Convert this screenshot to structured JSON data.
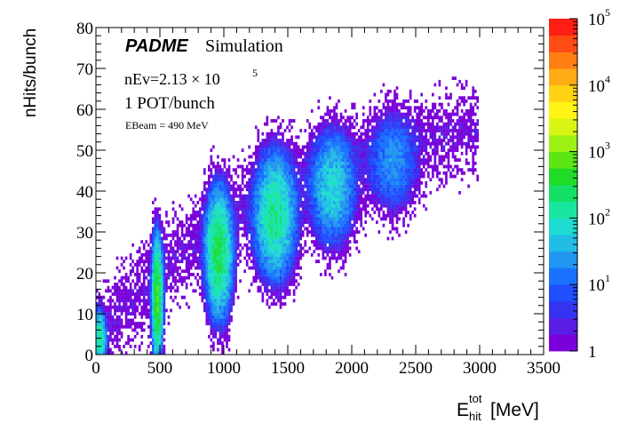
{
  "chart_data": {
    "type": "heatmap",
    "xlabel_main": "E",
    "xlabel_sup": "tot",
    "xlabel_sub": "hit",
    "xlabel_unit": "[MeV]",
    "ylabel": "nHits/bunch",
    "xlim": [
      0,
      3500
    ],
    "ylim": [
      0,
      80
    ],
    "x_ticks": [
      0,
      500,
      1000,
      1500,
      2000,
      2500,
      3000,
      3500
    ],
    "y_ticks": [
      0,
      10,
      20,
      30,
      40,
      50,
      60,
      70,
      80
    ],
    "z_scale": "log",
    "zlim": [
      1,
      100000
    ],
    "z_tick_exponents": [
      "",
      "1",
      "2",
      "3",
      "4",
      "5"
    ],
    "palette": [
      "#7a00d9",
      "#5a1de6",
      "#3434f0",
      "#1f4fff",
      "#1a72ff",
      "#2196f0",
      "#22bde6",
      "#1edcd0",
      "#18e6a0",
      "#14e068",
      "#20dc28",
      "#5ee614",
      "#9cf014",
      "#d8f514",
      "#fff414",
      "#ffd214",
      "#ffac14",
      "#ff7e14",
      "#ff4c14",
      "#ff1e14"
    ],
    "clusters": [
      {
        "x": 30,
        "y": 4,
        "sx": 22,
        "sy": 3,
        "amp": 150
      },
      {
        "x": 480,
        "y": 14,
        "sx": 18,
        "sy": 6,
        "amp": 600
      },
      {
        "x": 960,
        "y": 25,
        "sx": 45,
        "sy": 6.5,
        "amp": 300
      },
      {
        "x": 1400,
        "y": 34,
        "sx": 70,
        "sy": 6.5,
        "amp": 170
      },
      {
        "x": 1850,
        "y": 41,
        "sx": 80,
        "sy": 6,
        "amp": 70
      },
      {
        "x": 2320,
        "y": 47,
        "sx": 90,
        "sy": 5.5,
        "amp": 22
      }
    ],
    "band": {
      "x_max": 3000,
      "width": 5.5
    }
  },
  "annotations": {
    "experiment": "PADME",
    "tag": "Simulation",
    "nev_prefix": "nEv=2.13 × 10",
    "nev_exp": "5",
    "pot": "1 POT/bunch",
    "beam": "EBeam = 490 MeV"
  },
  "colors": {
    "axis": "#000000",
    "background": "#ffffff"
  }
}
